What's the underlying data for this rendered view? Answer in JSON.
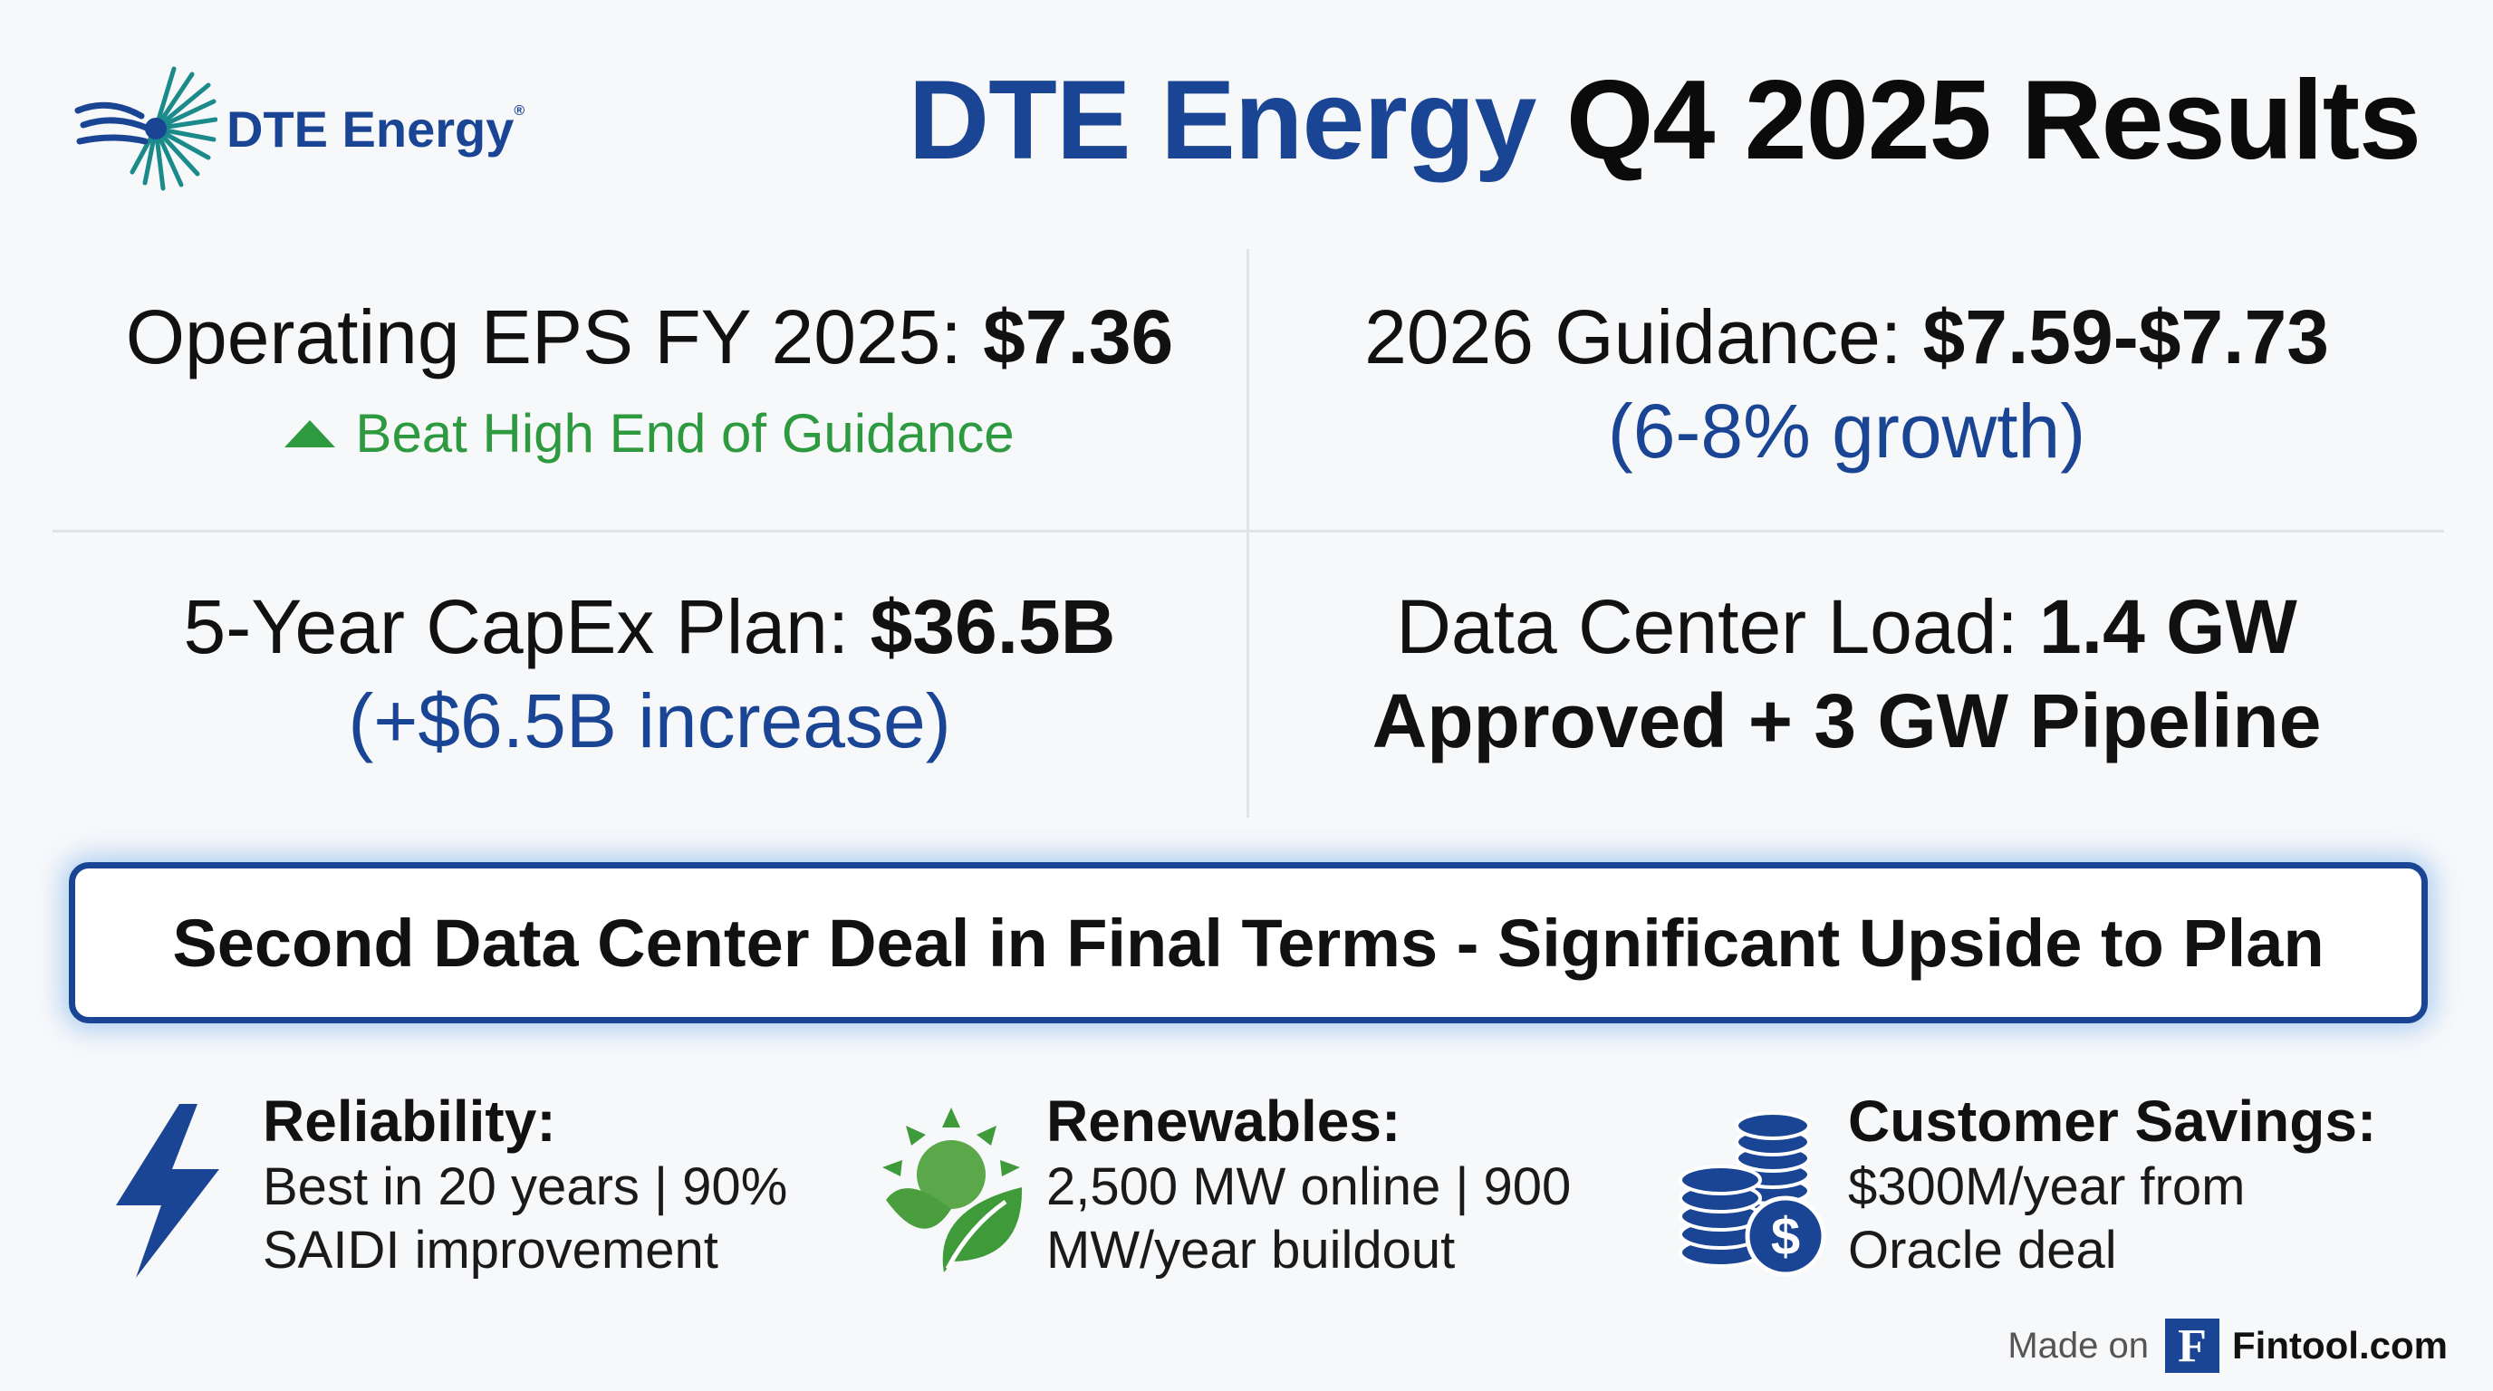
{
  "header": {
    "logo_text": "DTE Energy",
    "logo_reg": "®",
    "title_part1": "DTE Energy",
    "title_part2": "Q4 2025 Results"
  },
  "metrics": {
    "eps": {
      "label": "Operating EPS FY 2025: ",
      "value": "$7.36",
      "note": "Beat High End of Guidance"
    },
    "guidance": {
      "label": "2026 Guidance: ",
      "value": "$7.59-$7.73",
      "note": "(6-8% growth)"
    },
    "capex": {
      "label": "5-Year CapEx Plan: ",
      "value": "$36.5B",
      "note": "(+$6.5B increase)"
    },
    "data_center": {
      "label": "Data Center Load: ",
      "value": "1.4 GW",
      "line2": "Approved + 3 GW Pipeline"
    }
  },
  "banner": {
    "text": "Second Data Center Deal in Final Terms - Significant Upside to Plan"
  },
  "features": [
    {
      "icon": "lightning-icon",
      "title": "Reliability:",
      "line1": "Best in 20 years | 90%",
      "line2": "SAIDI improvement"
    },
    {
      "icon": "sun-leaf-icon",
      "title": "Renewables:",
      "line1": "2,500 MW online | 900",
      "line2": "MW/year buildout"
    },
    {
      "icon": "coins-dollar-icon",
      "title": "Customer Savings:",
      "line1": "$300M/year from",
      "line2": "Oracle deal"
    }
  ],
  "footer": {
    "made_on": "Made on",
    "brand_letter": "F",
    "brand_name": "Fintool.com"
  },
  "colors": {
    "brand_blue": "#1a4494",
    "positive_green": "#2e9a3f",
    "leaf_green": "#3f9a3a",
    "divider": "#e0e3e8"
  }
}
